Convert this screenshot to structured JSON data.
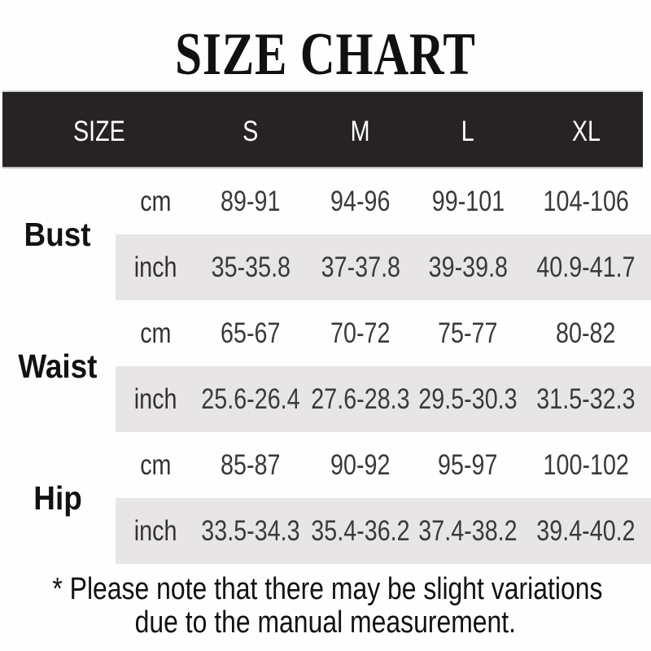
{
  "title": "SIZE CHART",
  "colors": {
    "header_bar_bg": "#272324",
    "header_bar_text": "#ffffff",
    "shaded_row_bg": "#e7e5e5",
    "label_text": "#131111",
    "value_text": "#3a393b"
  },
  "header": {
    "size_label": "SIZE",
    "columns": [
      "S",
      "M",
      "L",
      "XL"
    ]
  },
  "table": {
    "rows": [
      {
        "label": "Bust",
        "units": [
          {
            "unit": "cm",
            "values": [
              "89-91",
              "94-96",
              "99-101",
              "104-106"
            ]
          },
          {
            "unit": "inch",
            "values": [
              "35-35.8",
              "37-37.8",
              "39-39.8",
              "40.9-41.7"
            ]
          }
        ]
      },
      {
        "label": "Waist",
        "units": [
          {
            "unit": "cm",
            "values": [
              "65-67",
              "70-72",
              "75-77",
              "80-82"
            ]
          },
          {
            "unit": "inch",
            "values": [
              "25.6-26.4",
              "27.6-28.3",
              "29.5-30.3",
              "31.5-32.3"
            ]
          }
        ]
      },
      {
        "label": "Hip",
        "units": [
          {
            "unit": "cm",
            "values": [
              "85-87",
              "90-92",
              "95-97",
              "100-102"
            ]
          },
          {
            "unit": "inch",
            "values": [
              "33.5-34.3",
              "35.4-36.2",
              "37.4-38.2",
              "39.4-40.2"
            ]
          }
        ]
      }
    ]
  },
  "footer": {
    "line1": "* Please note that there may be slight variations",
    "line2": "due to the manual measurement."
  },
  "chart_data": {
    "type": "table",
    "title": "SIZE CHART",
    "columns": [
      "SIZE",
      "unit",
      "S",
      "M",
      "L",
      "XL"
    ],
    "rows": [
      [
        "Bust",
        "cm",
        "89-91",
        "94-96",
        "99-101",
        "104-106"
      ],
      [
        "Bust",
        "inch",
        "35-35.8",
        "37-37.8",
        "39-39.8",
        "40.9-41.7"
      ],
      [
        "Waist",
        "cm",
        "65-67",
        "70-72",
        "75-77",
        "80-82"
      ],
      [
        "Waist",
        "inch",
        "25.6-26.4",
        "27.6-28.3",
        "29.5-30.3",
        "31.5-32.3"
      ],
      [
        "Hip",
        "cm",
        "85-87",
        "90-92",
        "95-97",
        "100-102"
      ],
      [
        "Hip",
        "inch",
        "33.5-34.3",
        "35.4-36.2",
        "37.4-38.2",
        "39.4-40.2"
      ]
    ],
    "note": "* Please note that there may be slight variations due to the manual measurement."
  }
}
